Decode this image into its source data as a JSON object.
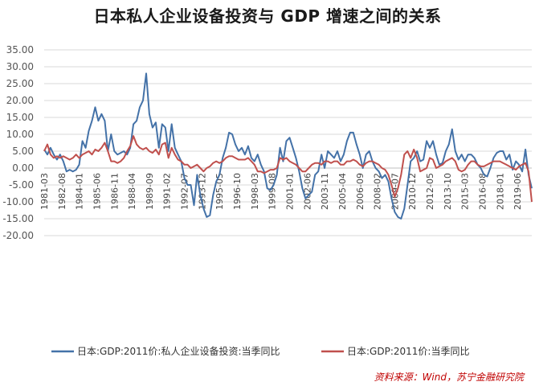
{
  "chart_data": {
    "type": "line",
    "title": "日本私人企业设备投资与 GDP 增速之间的关系",
    "ylim": [
      -20,
      35
    ],
    "yticks": [
      "35.00",
      "30.00",
      "25.00",
      "20.00",
      "15.00",
      "10.00",
      "5.00",
      "0.00",
      "-5.00",
      "-10.00",
      "-15.00",
      "-20.00"
    ],
    "xticks": [
      "1981-03",
      "1982-08",
      "1984-01",
      "1985-06",
      "1986-11",
      "1988-04",
      "1989-09",
      "1991-02",
      "1992-07",
      "1993-12",
      "1995-05",
      "1996-10",
      "1998-03",
      "1999-08",
      "2001-01",
      "2002-06",
      "2003-11",
      "2005-04",
      "2006-09",
      "2008-02",
      "2009-07",
      "2010-12",
      "2012-05",
      "2013-10",
      "2015-03",
      "2016-08",
      "2018-01",
      "2019-06"
    ],
    "grid": "horizontal",
    "legend_position": "bottom",
    "series": [
      {
        "name": "日本:GDP:2011价:私人企业设备投资:当季同比",
        "color": "#4472a8",
        "anchors": [
          [
            0,
            5.5
          ],
          [
            1,
            4
          ],
          [
            2,
            6
          ],
          [
            3,
            4
          ],
          [
            4,
            2.5
          ],
          [
            5,
            4
          ],
          [
            6,
            2
          ],
          [
            7,
            -1
          ],
          [
            8,
            -0.5
          ],
          [
            9,
            -1
          ],
          [
            10,
            -0.5
          ],
          [
            11,
            1
          ],
          [
            12,
            8
          ],
          [
            13,
            6
          ],
          [
            14,
            11
          ],
          [
            15,
            14
          ],
          [
            16,
            18
          ],
          [
            17,
            14
          ],
          [
            18,
            16
          ],
          [
            19,
            14
          ],
          [
            20,
            5
          ],
          [
            21,
            10
          ],
          [
            22,
            5
          ],
          [
            23,
            4
          ],
          [
            24,
            4.5
          ],
          [
            25,
            5
          ],
          [
            26,
            4
          ],
          [
            27,
            6
          ],
          [
            28,
            13
          ],
          [
            29,
            14
          ],
          [
            30,
            18
          ],
          [
            31,
            20
          ],
          [
            32,
            28
          ],
          [
            33,
            16
          ],
          [
            34,
            12
          ],
          [
            35,
            13.5
          ],
          [
            36,
            6
          ],
          [
            37,
            13
          ],
          [
            38,
            12
          ],
          [
            39,
            5
          ],
          [
            40,
            13
          ],
          [
            41,
            6
          ],
          [
            42,
            4
          ],
          [
            43,
            2
          ],
          [
            44,
            -3
          ],
          [
            45,
            -5
          ],
          [
            46,
            -5
          ],
          [
            47,
            -11
          ],
          [
            48,
            -2
          ],
          [
            49,
            -8
          ],
          [
            50,
            -12
          ],
          [
            51,
            -14.5
          ],
          [
            52,
            -14
          ],
          [
            53,
            -8
          ],
          [
            54,
            -4
          ],
          [
            55,
            -2
          ],
          [
            56,
            3
          ],
          [
            57,
            6
          ],
          [
            58,
            10.5
          ],
          [
            59,
            10
          ],
          [
            60,
            7
          ],
          [
            61,
            5
          ],
          [
            62,
            6
          ],
          [
            63,
            4
          ],
          [
            64,
            6.5
          ],
          [
            65,
            3
          ],
          [
            66,
            2
          ],
          [
            67,
            4
          ],
          [
            68,
            1
          ],
          [
            69,
            -1
          ],
          [
            70,
            -6
          ],
          [
            71,
            -6.5
          ],
          [
            72,
            -5
          ],
          [
            73,
            -2
          ],
          [
            74,
            6
          ],
          [
            75,
            2
          ],
          [
            76,
            8
          ],
          [
            77,
            9
          ],
          [
            78,
            6
          ],
          [
            79,
            3
          ],
          [
            80,
            -1
          ],
          [
            81,
            -6
          ],
          [
            82,
            -9
          ],
          [
            83,
            -8
          ],
          [
            84,
            -7
          ],
          [
            85,
            -2
          ],
          [
            86,
            -1
          ],
          [
            87,
            4
          ],
          [
            88,
            0
          ],
          [
            89,
            5
          ],
          [
            90,
            4
          ],
          [
            91,
            3
          ],
          [
            92,
            5
          ],
          [
            93,
            2
          ],
          [
            94,
            4
          ],
          [
            95,
            8
          ],
          [
            96,
            10.5
          ],
          [
            97,
            10.5
          ],
          [
            98,
            7
          ],
          [
            99,
            4
          ],
          [
            100,
            0
          ],
          [
            101,
            4
          ],
          [
            102,
            5
          ],
          [
            103,
            2
          ],
          [
            104,
            0
          ],
          [
            105,
            -1
          ],
          [
            106,
            -3
          ],
          [
            107,
            -2
          ],
          [
            108,
            -4
          ],
          [
            109,
            -9
          ],
          [
            110,
            -13
          ],
          [
            111,
            -14.5
          ],
          [
            112,
            -15
          ],
          [
            113,
            -12
          ],
          [
            114,
            -5
          ],
          [
            115,
            2
          ],
          [
            116,
            3
          ],
          [
            117,
            5
          ],
          [
            118,
            2
          ],
          [
            119,
            2.5
          ],
          [
            120,
            8
          ],
          [
            121,
            6
          ],
          [
            122,
            8
          ],
          [
            123,
            4
          ],
          [
            124,
            1
          ],
          [
            125,
            1.5
          ],
          [
            126,
            5
          ],
          [
            127,
            7
          ],
          [
            128,
            11.5
          ],
          [
            129,
            5
          ],
          [
            130,
            2.5
          ],
          [
            131,
            4
          ],
          [
            132,
            2
          ],
          [
            133,
            4
          ],
          [
            134,
            4
          ],
          [
            135,
            3
          ],
          [
            136,
            1
          ],
          [
            137,
            0
          ],
          [
            138,
            -2
          ],
          [
            139,
            -2.5
          ],
          [
            140,
            0
          ],
          [
            141,
            3
          ],
          [
            142,
            4.5
          ],
          [
            143,
            5
          ],
          [
            144,
            5
          ],
          [
            145,
            2.5
          ],
          [
            146,
            4
          ],
          [
            147,
            -0.5
          ],
          [
            148,
            2
          ],
          [
            149,
            1
          ],
          [
            150,
            -1
          ],
          [
            151,
            5.5
          ],
          [
            152,
            -2
          ],
          [
            153,
            -6
          ]
        ]
      },
      {
        "name": "日本:GDP:2011价:当季同比",
        "color": "#c0504d",
        "anchors": [
          [
            0,
            5
          ],
          [
            1,
            7
          ],
          [
            2,
            4
          ],
          [
            3,
            3
          ],
          [
            4,
            3.5
          ],
          [
            5,
            3
          ],
          [
            6,
            3.5
          ],
          [
            7,
            3
          ],
          [
            8,
            2.5
          ],
          [
            9,
            3
          ],
          [
            10,
            4
          ],
          [
            11,
            3
          ],
          [
            12,
            4
          ],
          [
            13,
            4.5
          ],
          [
            14,
            5
          ],
          [
            15,
            4
          ],
          [
            16,
            5.5
          ],
          [
            17,
            5
          ],
          [
            18,
            6
          ],
          [
            19,
            7.5
          ],
          [
            20,
            5
          ],
          [
            21,
            2
          ],
          [
            22,
            2
          ],
          [
            23,
            1.5
          ],
          [
            24,
            2
          ],
          [
            25,
            3
          ],
          [
            26,
            5
          ],
          [
            27,
            6.5
          ],
          [
            28,
            9.5
          ],
          [
            29,
            7
          ],
          [
            30,
            6
          ],
          [
            31,
            5.5
          ],
          [
            32,
            6
          ],
          [
            33,
            5
          ],
          [
            34,
            4.5
          ],
          [
            35,
            5.5
          ],
          [
            36,
            4
          ],
          [
            37,
            7
          ],
          [
            38,
            7.5
          ],
          [
            39,
            3
          ],
          [
            40,
            6
          ],
          [
            41,
            4
          ],
          [
            42,
            2.5
          ],
          [
            43,
            2
          ],
          [
            44,
            1
          ],
          [
            45,
            1
          ],
          [
            46,
            0
          ],
          [
            47,
            0.5
          ],
          [
            48,
            1
          ],
          [
            49,
            0
          ],
          [
            50,
            -1
          ],
          [
            51,
            0
          ],
          [
            52,
            0.5
          ],
          [
            53,
            1.5
          ],
          [
            54,
            2
          ],
          [
            55,
            1.5
          ],
          [
            56,
            2
          ],
          [
            57,
            3
          ],
          [
            58,
            3.5
          ],
          [
            59,
            3.5
          ],
          [
            60,
            3
          ],
          [
            61,
            2.5
          ],
          [
            62,
            2.5
          ],
          [
            63,
            2.5
          ],
          [
            64,
            3
          ],
          [
            65,
            2
          ],
          [
            66,
            1
          ],
          [
            67,
            -1
          ],
          [
            68,
            -1
          ],
          [
            69,
            -1.5
          ],
          [
            70,
            -1
          ],
          [
            71,
            -0.5
          ],
          [
            72,
            -0.5
          ],
          [
            73,
            0
          ],
          [
            74,
            3
          ],
          [
            75,
            2.5
          ],
          [
            76,
            3
          ],
          [
            77,
            2
          ],
          [
            78,
            1.5
          ],
          [
            79,
            1
          ],
          [
            80,
            0
          ],
          [
            81,
            -1
          ],
          [
            82,
            -1
          ],
          [
            83,
            0
          ],
          [
            84,
            1
          ],
          [
            85,
            1.5
          ],
          [
            86,
            1.5
          ],
          [
            87,
            1
          ],
          [
            88,
            2
          ],
          [
            89,
            2
          ],
          [
            90,
            1.5
          ],
          [
            91,
            2
          ],
          [
            92,
            2
          ],
          [
            93,
            1
          ],
          [
            94,
            1
          ],
          [
            95,
            2
          ],
          [
            96,
            2
          ],
          [
            97,
            2.5
          ],
          [
            98,
            2
          ],
          [
            99,
            1
          ],
          [
            100,
            0.5
          ],
          [
            101,
            1.5
          ],
          [
            102,
            2
          ],
          [
            103,
            2
          ],
          [
            104,
            1.5
          ],
          [
            105,
            1
          ],
          [
            106,
            0
          ],
          [
            107,
            -0.5
          ],
          [
            108,
            -2
          ],
          [
            109,
            -5
          ],
          [
            110,
            -8.5
          ],
          [
            111,
            -6
          ],
          [
            112,
            -2
          ],
          [
            113,
            4
          ],
          [
            114,
            5
          ],
          [
            115,
            3
          ],
          [
            116,
            5.5
          ],
          [
            117,
            3
          ],
          [
            118,
            -1
          ],
          [
            119,
            -0.5
          ],
          [
            120,
            0
          ],
          [
            121,
            3
          ],
          [
            122,
            2.5
          ],
          [
            123,
            0
          ],
          [
            124,
            0.5
          ],
          [
            125,
            1
          ],
          [
            126,
            2
          ],
          [
            127,
            2.5
          ],
          [
            128,
            3
          ],
          [
            129,
            2
          ],
          [
            130,
            -0.5
          ],
          [
            131,
            -1
          ],
          [
            132,
            -0.5
          ],
          [
            133,
            1
          ],
          [
            134,
            2
          ],
          [
            135,
            2
          ],
          [
            136,
            1
          ],
          [
            137,
            0.5
          ],
          [
            138,
            0.5
          ],
          [
            139,
            1
          ],
          [
            140,
            1.5
          ],
          [
            141,
            2
          ],
          [
            142,
            2
          ],
          [
            143,
            2
          ],
          [
            144,
            1.5
          ],
          [
            145,
            1
          ],
          [
            146,
            0.5
          ],
          [
            147,
            0
          ],
          [
            148,
            -0.5
          ],
          [
            149,
            0.5
          ],
          [
            150,
            1
          ],
          [
            151,
            1.5
          ],
          [
            152,
            -1
          ],
          [
            153,
            -10
          ]
        ]
      }
    ]
  },
  "source_note": "资料来源：Wind，苏宁金融研究院"
}
